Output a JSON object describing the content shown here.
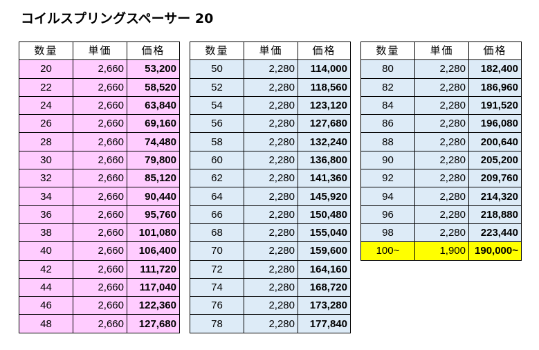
{
  "title": "コイルスプリングスペーサー 20",
  "headers": {
    "qty": "数量",
    "unit": "単価",
    "price": "価格"
  },
  "colors": {
    "table1_fill": "#ffccff",
    "table2_fill": "#ddebf7",
    "highlight_fill": "#ffff00"
  },
  "tables": [
    {
      "rows": [
        {
          "qty": "20",
          "unit": "2,660",
          "price": "53,200"
        },
        {
          "qty": "22",
          "unit": "2,660",
          "price": "58,520"
        },
        {
          "qty": "24",
          "unit": "2,660",
          "price": "63,840"
        },
        {
          "qty": "26",
          "unit": "2,660",
          "price": "69,160"
        },
        {
          "qty": "28",
          "unit": "2,660",
          "price": "74,480"
        },
        {
          "qty": "30",
          "unit": "2,660",
          "price": "79,800"
        },
        {
          "qty": "32",
          "unit": "2,660",
          "price": "85,120"
        },
        {
          "qty": "34",
          "unit": "2,660",
          "price": "90,440"
        },
        {
          "qty": "36",
          "unit": "2,660",
          "price": "95,760"
        },
        {
          "qty": "38",
          "unit": "2,660",
          "price": "101,080"
        },
        {
          "qty": "40",
          "unit": "2,660",
          "price": "106,400"
        },
        {
          "qty": "42",
          "unit": "2,660",
          "price": "111,720"
        },
        {
          "qty": "44",
          "unit": "2,660",
          "price": "117,040"
        },
        {
          "qty": "46",
          "unit": "2,660",
          "price": "122,360"
        },
        {
          "qty": "48",
          "unit": "2,660",
          "price": "127,680"
        }
      ]
    },
    {
      "rows": [
        {
          "qty": "50",
          "unit": "2,280",
          "price": "114,000"
        },
        {
          "qty": "52",
          "unit": "2,280",
          "price": "118,560"
        },
        {
          "qty": "54",
          "unit": "2,280",
          "price": "123,120"
        },
        {
          "qty": "56",
          "unit": "2,280",
          "price": "127,680"
        },
        {
          "qty": "58",
          "unit": "2,280",
          "price": "132,240"
        },
        {
          "qty": "60",
          "unit": "2,280",
          "price": "136,800"
        },
        {
          "qty": "62",
          "unit": "2,280",
          "price": "141,360"
        },
        {
          "qty": "64",
          "unit": "2,280",
          "price": "145,920"
        },
        {
          "qty": "66",
          "unit": "2,280",
          "price": "150,480"
        },
        {
          "qty": "68",
          "unit": "2,280",
          "price": "155,040"
        },
        {
          "qty": "70",
          "unit": "2,280",
          "price": "159,600"
        },
        {
          "qty": "72",
          "unit": "2,280",
          "price": "164,160"
        },
        {
          "qty": "74",
          "unit": "2,280",
          "price": "168,720"
        },
        {
          "qty": "76",
          "unit": "2,280",
          "price": "173,280"
        },
        {
          "qty": "78",
          "unit": "2,280",
          "price": "177,840"
        }
      ]
    },
    {
      "rows": [
        {
          "qty": "80",
          "unit": "2,280",
          "price": "182,400"
        },
        {
          "qty": "82",
          "unit": "2,280",
          "price": "186,960"
        },
        {
          "qty": "84",
          "unit": "2,280",
          "price": "191,520"
        },
        {
          "qty": "86",
          "unit": "2,280",
          "price": "196,080"
        },
        {
          "qty": "88",
          "unit": "2,280",
          "price": "200,640"
        },
        {
          "qty": "90",
          "unit": "2,280",
          "price": "205,200"
        },
        {
          "qty": "92",
          "unit": "2,280",
          "price": "209,760"
        },
        {
          "qty": "94",
          "unit": "2,280",
          "price": "214,320"
        },
        {
          "qty": "96",
          "unit": "2,280",
          "price": "218,880"
        },
        {
          "qty": "98",
          "unit": "2,280",
          "price": "223,440"
        },
        {
          "qty": "100~",
          "unit": "1,900",
          "price": "190,000~",
          "highlight": true
        }
      ]
    }
  ]
}
